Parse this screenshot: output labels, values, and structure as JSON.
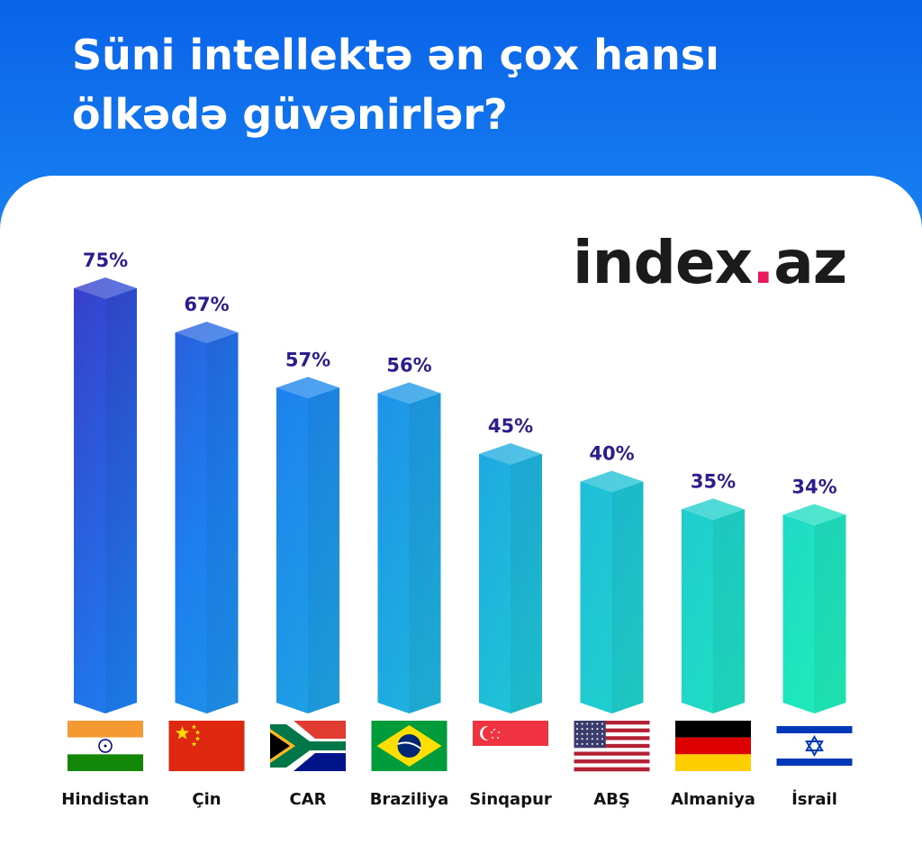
{
  "title": "Süni intellektə ən çox hansı ölkədə güvənirlər?",
  "logo": {
    "part1": "index",
    "dot": ".",
    "part2": "az",
    "dot_color": "#e8185a"
  },
  "colors": {
    "header": "#0f6fe9",
    "bar_top": "#3226b8",
    "bar_mid": "#1f8ef0",
    "bar_bottom": "#1ff2b0",
    "value_label": "#2a1e8c"
  },
  "chart_data": {
    "type": "bar",
    "categories": [
      "Hindistan",
      "Çin",
      "CAR",
      "Braziliya",
      "Sinqapur",
      "ABŞ",
      "Almaniya",
      "İsrail"
    ],
    "values": [
      75,
      67,
      57,
      56,
      45,
      40,
      35,
      34
    ],
    "value_labels": [
      "75%",
      "67%",
      "57%",
      "56%",
      "45%",
      "40%",
      "35%",
      "34%"
    ],
    "flags": [
      "flag-india-icon",
      "flag-china-icon",
      "flag-south-africa-icon",
      "flag-brazil-icon",
      "flag-singapore-icon",
      "flag-usa-icon",
      "flag-germany-icon",
      "flag-israel-icon"
    ],
    "ylim": [
      0,
      75
    ],
    "grid": false,
    "legend": "none"
  }
}
